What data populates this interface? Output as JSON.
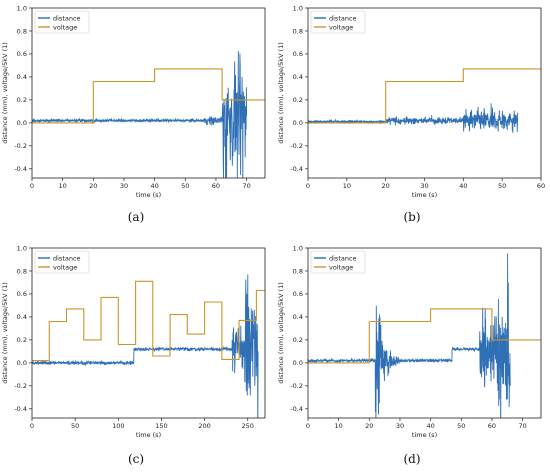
{
  "colors": {
    "distance": "#2f6fb5",
    "voltage": "#c8962a"
  },
  "captions": [
    "(a)",
    "(b)",
    "(c)",
    "(d)"
  ],
  "chart_data": [
    {
      "type": "line",
      "xlabel": "time (s)",
      "ylabel": "distance (mm), voltage/5kV (1)",
      "xlim": [
        0,
        76
      ],
      "ylim": [
        -0.48,
        1.0
      ],
      "xticks": [
        0,
        10,
        20,
        30,
        40,
        50,
        60,
        70
      ],
      "yticks": [
        -0.4,
        -0.2,
        0.0,
        0.2,
        0.4,
        0.6,
        0.8,
        1.0
      ],
      "legend": "top-left",
      "series": [
        {
          "name": "distance",
          "kind": "distance",
          "noise": 0.012,
          "segments": [
            [
              0,
              0.02
            ],
            [
              56,
              0.02
            ]
          ],
          "bursts": [
            [
              56,
              62,
              0.05
            ],
            [
              62,
              70,
              0.6
            ]
          ],
          "end": 70
        },
        {
          "name": "voltage",
          "kind": "voltage",
          "steps": [
            [
              0,
              0.0
            ],
            [
              20,
              0.36
            ],
            [
              40,
              0.47
            ],
            [
              62,
              0.2
            ],
            [
              76,
              0.2
            ]
          ]
        }
      ]
    },
    {
      "type": "line",
      "xlabel": "time (s)",
      "ylabel": "distance (mm), voltage/5kV (1)",
      "xlim": [
        0,
        60
      ],
      "ylim": [
        -0.48,
        1.0
      ],
      "xticks": [
        0,
        10,
        20,
        30,
        40,
        50,
        60
      ],
      "yticks": [
        -0.4,
        -0.2,
        0.0,
        0.2,
        0.4,
        0.6,
        0.8,
        1.0
      ],
      "legend": "top-left",
      "series": [
        {
          "name": "distance",
          "kind": "distance",
          "noise": 0.012,
          "segments": [
            [
              0,
              0.01
            ],
            [
              20,
              0.02
            ]
          ],
          "bursts": [
            [
              20,
              40,
              0.04
            ],
            [
              40,
              54,
              0.12
            ]
          ],
          "end": 54
        },
        {
          "name": "voltage",
          "kind": "voltage",
          "steps": [
            [
              0,
              0.0
            ],
            [
              20,
              0.36
            ],
            [
              40,
              0.47
            ],
            [
              60,
              0.47
            ]
          ]
        }
      ]
    },
    {
      "type": "line",
      "xlabel": "time (s)",
      "ylabel": "distance (mm), voltage/5kV (1)",
      "xlim": [
        0,
        270
      ],
      "ylim": [
        -0.48,
        1.0
      ],
      "xticks": [
        0,
        50,
        100,
        150,
        200,
        250
      ],
      "yticks": [
        -0.4,
        -0.2,
        0.0,
        0.2,
        0.4,
        0.6,
        0.8,
        1.0
      ],
      "legend": "top-left",
      "series": [
        {
          "name": "distance",
          "kind": "distance",
          "noise": 0.014,
          "segments": [
            [
              0,
              0.0
            ],
            [
              118,
              0.12
            ]
          ],
          "bursts": [
            [
              232,
              246,
              0.25
            ],
            [
              246,
              262,
              0.8
            ]
          ],
          "end": 262
        },
        {
          "name": "voltage",
          "kind": "voltage",
          "steps": [
            [
              0,
              0.02
            ],
            [
              20,
              0.36
            ],
            [
              40,
              0.47
            ],
            [
              60,
              0.2
            ],
            [
              80,
              0.57
            ],
            [
              100,
              0.16
            ],
            [
              120,
              0.71
            ],
            [
              140,
              0.06
            ],
            [
              160,
              0.42
            ],
            [
              180,
              0.25
            ],
            [
              200,
              0.53
            ],
            [
              220,
              0.03
            ],
            [
              240,
              0.37
            ],
            [
              260,
              0.63
            ],
            [
              270,
              0.63
            ]
          ]
        }
      ]
    },
    {
      "type": "line",
      "xlabel": "time (s)",
      "ylabel": "distance (mm), voltage/5kV (1)",
      "xlim": [
        0,
        76
      ],
      "ylim": [
        -0.48,
        1.0
      ],
      "xticks": [
        0,
        10,
        20,
        30,
        40,
        50,
        60,
        70
      ],
      "yticks": [
        -0.4,
        -0.2,
        0.0,
        0.2,
        0.4,
        0.6,
        0.8,
        1.0
      ],
      "legend": "top-left",
      "series": [
        {
          "name": "distance",
          "kind": "distance",
          "noise": 0.012,
          "segments": [
            [
              0,
              0.02
            ],
            [
              47,
              0.12
            ]
          ],
          "bursts": [
            [
              22,
              30,
              0.55,
              "decay"
            ],
            [
              56,
              62,
              0.45
            ],
            [
              62,
              66,
              0.7
            ]
          ],
          "end": 66
        },
        {
          "name": "voltage",
          "kind": "voltage",
          "steps": [
            [
              0,
              0.0
            ],
            [
              20,
              0.36
            ],
            [
              40,
              0.47
            ],
            [
              60,
              0.2
            ],
            [
              76,
              0.2
            ]
          ]
        }
      ]
    }
  ]
}
